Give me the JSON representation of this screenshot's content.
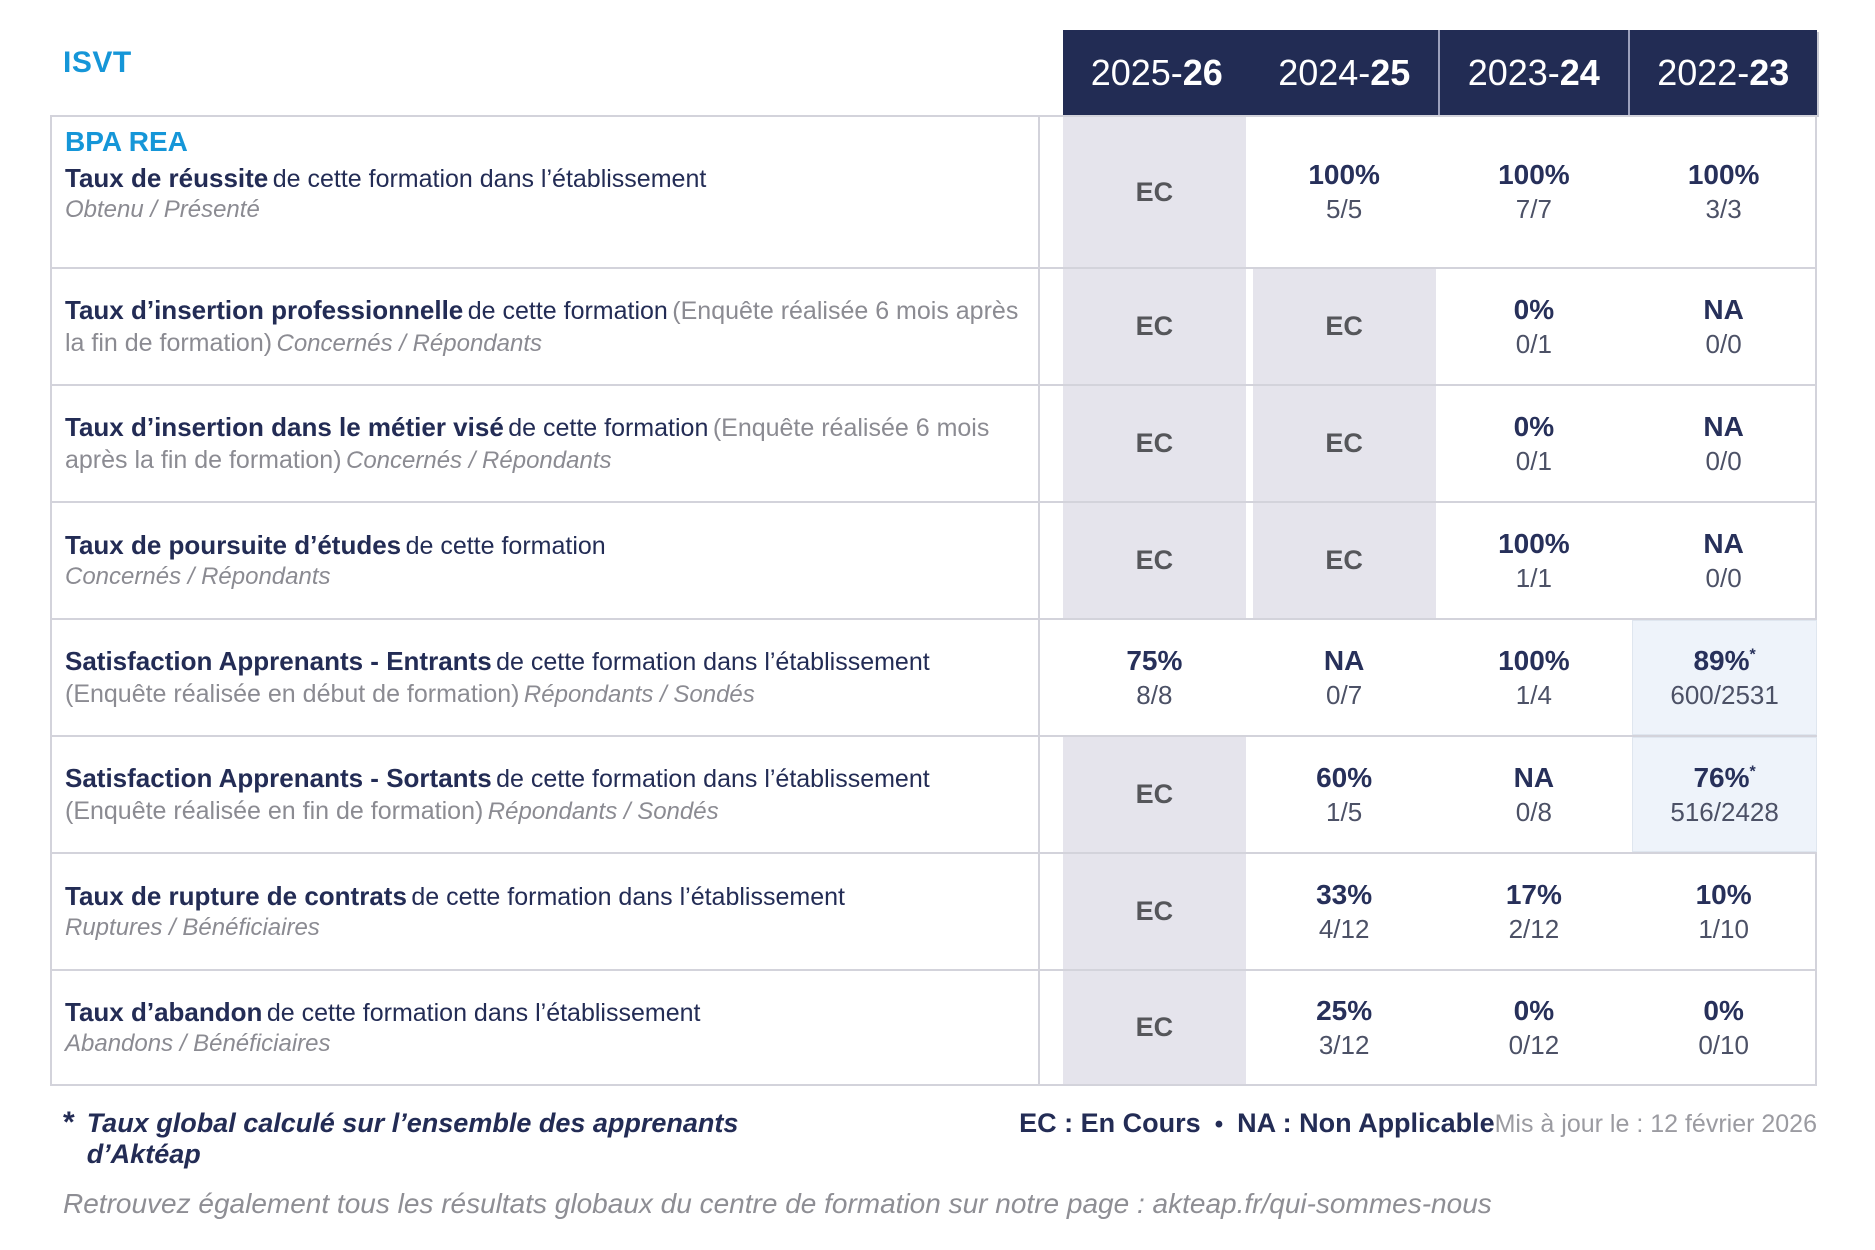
{
  "org": "ISVT",
  "program": "BPA REA",
  "colors": {
    "accent_blue": "#1596d8",
    "navy_text": "#232c55",
    "header_bg": "#222c54",
    "value_navy": "#27305a",
    "gray_text": "#8b8b92",
    "ec_text": "#55565a",
    "ec_bg": "#e5e4ec",
    "star_cell_bg": "#eef3fa",
    "fraction_text": "#4c5166",
    "border": "#d3d3db"
  },
  "header": {
    "years": [
      {
        "prefix": "2025-",
        "suffix": "26"
      },
      {
        "prefix": "2024-",
        "suffix": "25"
      },
      {
        "prefix": "2023-",
        "suffix": "24"
      },
      {
        "prefix": "2022-",
        "suffix": "23"
      }
    ]
  },
  "rows": [
    {
      "title": "Taux de réussite",
      "desc": "de cette formation dans l’établissement",
      "note": "",
      "sub": "Obtenu / Présenté",
      "cells": [
        {
          "v": "EC"
        },
        {
          "v": "100%",
          "f": "5/5"
        },
        {
          "v": "100%",
          "f": "7/7"
        },
        {
          "v": "100%",
          "f": "3/3"
        }
      ]
    },
    {
      "title": "Taux d’insertion professionnelle",
      "desc": "de cette formation",
      "note": "(Enquête réalisée 6 mois après la fin de formation)",
      "sub": "Concernés / Répondants",
      "cells": [
        {
          "v": "EC"
        },
        {
          "v": "EC"
        },
        {
          "v": "0%",
          "f": "0/1"
        },
        {
          "v": "NA",
          "f": "0/0"
        }
      ]
    },
    {
      "title": "Taux d’insertion dans le métier visé",
      "desc": "de cette formation",
      "note": "(Enquête réalisée 6 mois après la fin de formation)",
      "sub": "Concernés / Répondants",
      "cells": [
        {
          "v": "EC"
        },
        {
          "v": "EC"
        },
        {
          "v": "0%",
          "f": "0/1"
        },
        {
          "v": "NA",
          "f": "0/0"
        }
      ]
    },
    {
      "title": "Taux de poursuite d’études",
      "desc": "de cette formation",
      "note": "",
      "sub": "Concernés / Répondants",
      "cells": [
        {
          "v": "EC"
        },
        {
          "v": "EC"
        },
        {
          "v": "100%",
          "f": "1/1"
        },
        {
          "v": "NA",
          "f": "0/0"
        }
      ]
    },
    {
      "title": "Satisfaction Apprenants - Entrants",
      "desc": "de cette formation dans l’établissement",
      "note": "(Enquête réalisée en début de formation)",
      "sub": "Répondants / Sondés",
      "cells": [
        {
          "v": "75%",
          "f": "8/8"
        },
        {
          "v": "NA",
          "f": "0/7"
        },
        {
          "v": "100%",
          "f": "1/4"
        },
        {
          "v": "89%",
          "star": "*",
          "f": "600/2531"
        }
      ]
    },
    {
      "title": "Satisfaction Apprenants - Sortants",
      "desc": "de cette formation dans l’établissement",
      "note": "(Enquête réalisée en fin de formation)",
      "sub": "Répondants / Sondés",
      "cells": [
        {
          "v": "EC"
        },
        {
          "v": "60%",
          "f": "1/5"
        },
        {
          "v": "NA",
          "f": "0/8"
        },
        {
          "v": "76%",
          "star": "*",
          "f": "516/2428"
        }
      ]
    },
    {
      "title": "Taux de rupture de contrats",
      "desc": "de cette formation dans l’établissement",
      "note": "",
      "sub": "Ruptures / Bénéficiaires",
      "cells": [
        {
          "v": "EC"
        },
        {
          "v": "33%",
          "f": "4/12"
        },
        {
          "v": "17%",
          "f": "2/12"
        },
        {
          "v": "10%",
          "f": "1/10"
        }
      ]
    },
    {
      "title": "Taux d’abandon",
      "desc": "de cette formation dans l’établissement",
      "note": "",
      "sub": "Abandons / Bénéficiaires",
      "cells": [
        {
          "v": "EC"
        },
        {
          "v": "25%",
          "f": "3/12"
        },
        {
          "v": "0%",
          "f": "0/12"
        },
        {
          "v": "0%",
          "f": "0/10"
        }
      ]
    }
  ],
  "footer": {
    "asterisk": "*",
    "note": "Taux global calculé sur l’ensemble des apprenants d’Aktéap",
    "legend_ec": "EC : En Cours",
    "legend_sep": "•",
    "legend_na": "NA : Non Applicable",
    "updated": "Mis à jour le : 12 février 2026"
  },
  "bottom": {
    "text": "Retrouvez également tous les résultats globaux du centre de formation sur notre page : ",
    "url": "akteap.fr/qui-sommes-nous"
  }
}
